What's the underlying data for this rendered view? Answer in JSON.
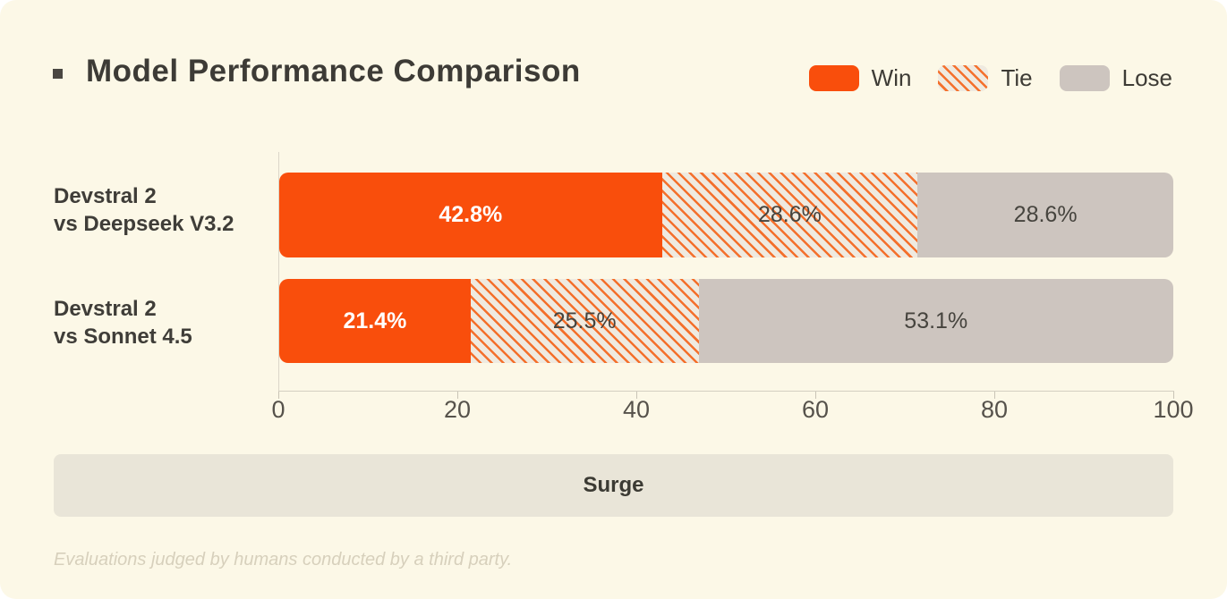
{
  "header": {
    "title": "Model Performance Comparison"
  },
  "legend": {
    "items": [
      {
        "label": "Win",
        "swatch": "solid-orange",
        "color": "#F94E0C"
      },
      {
        "label": "Tie",
        "swatch": "orange-diagonal-hatch",
        "hatch_bg": "#EFEAE0",
        "hatch_line": "#F4702C"
      },
      {
        "label": "Lose",
        "swatch": "solid-gray",
        "color": "#CDC5BF"
      }
    ]
  },
  "chart_data": {
    "type": "bar",
    "orientation": "horizontal",
    "stacked": true,
    "title": "Model Performance Comparison",
    "categories": [
      "Devstral 2 vs Deepseek V3.2",
      "Devstral 2 vs Sonnet 4.5"
    ],
    "series": [
      {
        "name": "Win",
        "values": [
          42.8,
          21.4
        ],
        "color": "#F94E0C"
      },
      {
        "name": "Tie",
        "values": [
          28.6,
          25.5
        ],
        "style": "hatched"
      },
      {
        "name": "Lose",
        "values": [
          28.6,
          53.1
        ],
        "color": "#CDC5BF"
      }
    ],
    "xlim": [
      0,
      100
    ],
    "x_ticks": [
      0,
      20,
      40,
      60,
      80,
      100
    ],
    "legend_position": "top-right",
    "grid": false,
    "background": "#FCF8E7"
  },
  "rows": [
    {
      "label_line1": "Devstral 2",
      "label_line2": "vs Deepseek V3.2",
      "segments": [
        {
          "name": "Win",
          "value": 42.8,
          "label": "42.8%"
        },
        {
          "name": "Tie",
          "value": 28.6,
          "label": "28.6%"
        },
        {
          "name": "Lose",
          "value": 28.6,
          "label": "28.6%"
        }
      ]
    },
    {
      "label_line1": "Devstral 2",
      "label_line2": "vs Sonnet 4.5",
      "segments": [
        {
          "name": "Win",
          "value": 21.4,
          "label": "21.4%"
        },
        {
          "name": "Tie",
          "value": 25.5,
          "label": "25.5%"
        },
        {
          "name": "Lose",
          "value": 53.1,
          "label": "53.1%"
        }
      ]
    }
  ],
  "banner": {
    "label": "Surge"
  },
  "footer": {
    "note": "Evaluations judged by humans conducted by a third party."
  }
}
